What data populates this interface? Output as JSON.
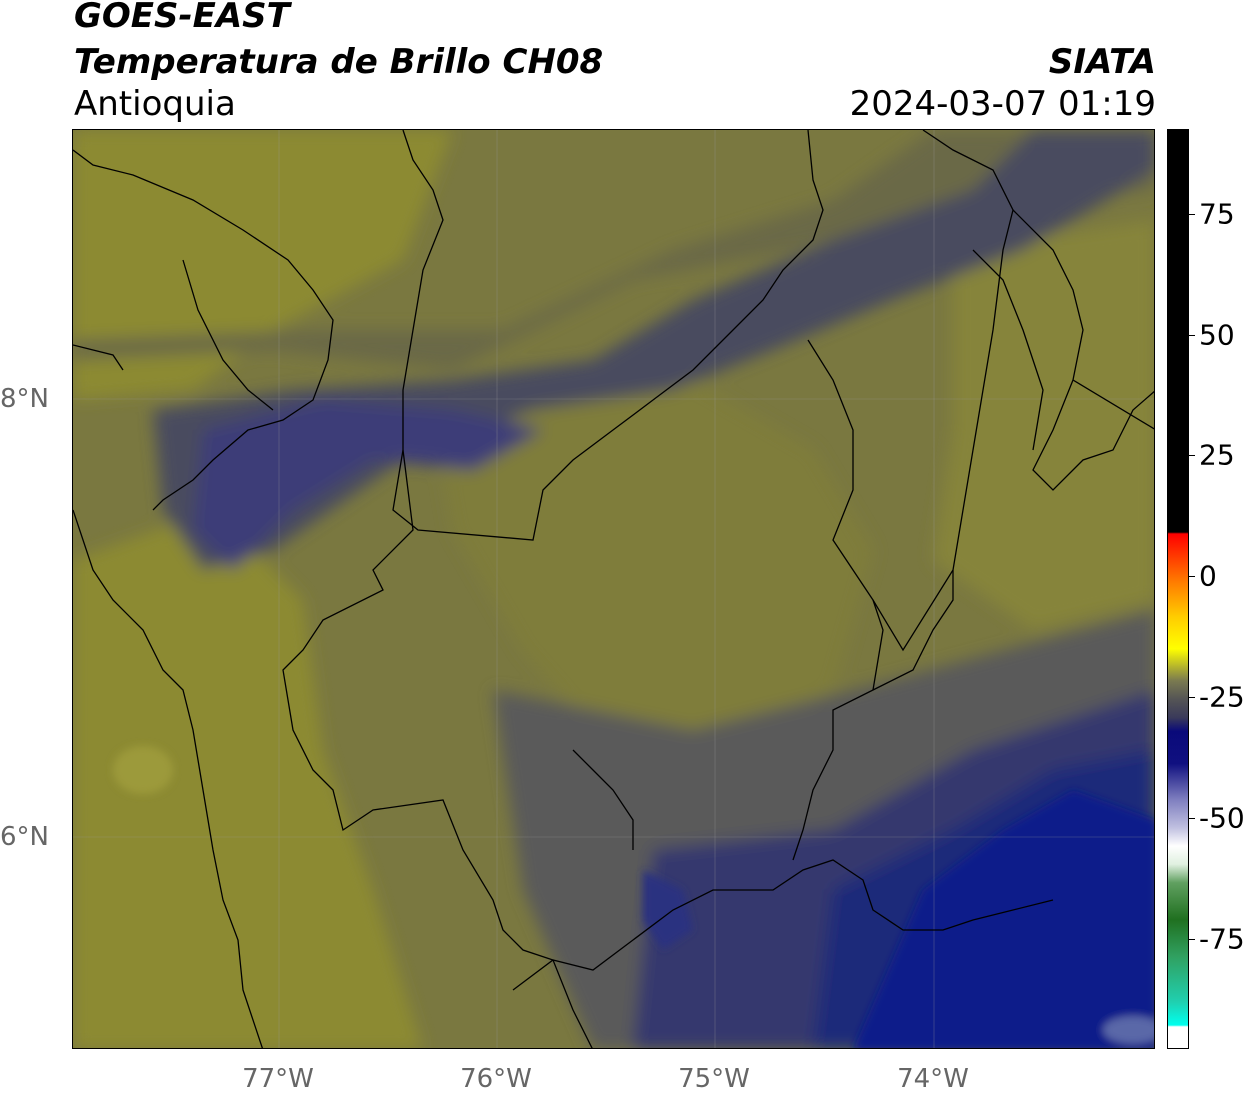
{
  "header": {
    "title": "GOES-EAST",
    "subtitle": "Temperatura de Brillo CH08",
    "region": "Antioquia",
    "organization": "SIATA",
    "timestamp": "2024-03-07 01:19"
  },
  "map": {
    "lat_labels": [
      "8°N",
      "6°N"
    ],
    "lon_labels": [
      "77°W",
      "76°W",
      "75°W",
      "74°W"
    ],
    "colors": {
      "warm_olive": "#8c8a32",
      "mid_olive": "#6f6c40",
      "gray_slate": "#5a5a55",
      "dark_slate": "#4a4b5e",
      "blue_violet": "#3c3e78",
      "deep_blue": "#1f2a7a",
      "navy": "#0f1f8a"
    }
  },
  "colorbar": {
    "labels": [
      "75",
      "50",
      "25",
      "0",
      "-25",
      "-50",
      "-75"
    ]
  }
}
